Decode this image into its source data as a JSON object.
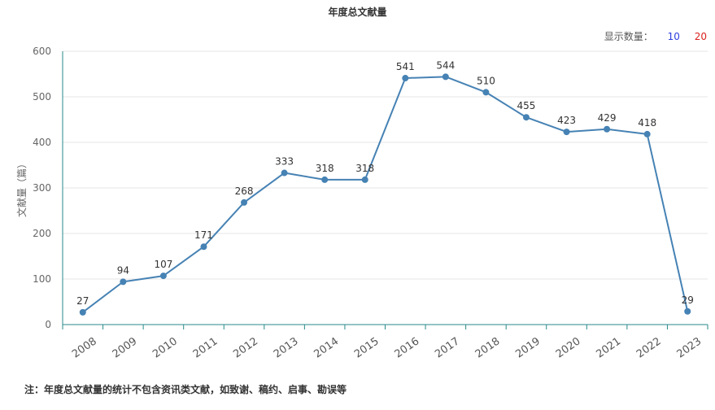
{
  "chart_data": {
    "type": "line",
    "title": "年度总文献量",
    "xlabel": "",
    "ylabel": "文献量（篇）",
    "categories": [
      "2008",
      "2009",
      "2010",
      "2011",
      "2012",
      "2013",
      "2014",
      "2015",
      "2016",
      "2017",
      "2018",
      "2019",
      "2020",
      "2021",
      "2022",
      "2023"
    ],
    "values": [
      27,
      94,
      107,
      171,
      268,
      333,
      318,
      318,
      541,
      544,
      510,
      455,
      423,
      429,
      418,
      29
    ],
    "ylim": [
      0,
      600
    ],
    "yticks": [
      "0",
      "100",
      "200",
      "300",
      "400",
      "500",
      "600"
    ],
    "grid": true,
    "data_labels": true,
    "line_color": "#4682b4"
  },
  "display_count": {
    "label": "显示数量：",
    "options": [
      "10",
      "20"
    ],
    "colors": [
      "#2e3ee0",
      "#d9231f"
    ]
  },
  "footnote": "注：年度总文献量的统计不包含资讯类文献，如致谢、稿约、启事、勘误等"
}
